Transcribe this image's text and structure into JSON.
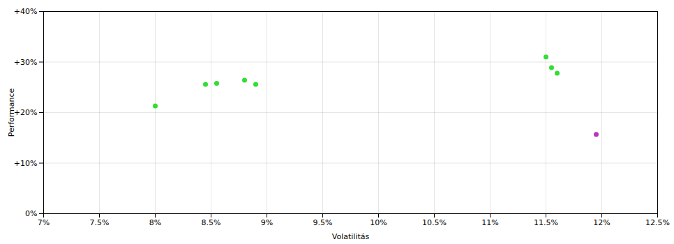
{
  "chart_data": {
    "type": "scatter",
    "xlabel": "Volatilitás",
    "ylabel": "Performance",
    "series": [
      {
        "color": "#33dd33",
        "x": [
          0.08,
          0.0845,
          0.0855,
          0.088,
          0.089,
          0.115,
          0.1155,
          0.116
        ],
        "values": [
          0.213,
          0.256,
          0.258,
          0.264,
          0.256,
          0.31,
          0.289,
          0.278
        ]
      },
      {
        "color": "#bb33bb",
        "x": [
          0.1195
        ],
        "values": [
          0.157
        ]
      }
    ],
    "xlim": [
      0.07,
      0.125
    ],
    "ylim": [
      0.0,
      0.4
    ],
    "xticks": [
      {
        "value": 0.07,
        "label": "7%"
      },
      {
        "value": 0.075,
        "label": "7.5%"
      },
      {
        "value": 0.08,
        "label": "8%"
      },
      {
        "value": 0.085,
        "label": "8.5%"
      },
      {
        "value": 0.09,
        "label": "9%"
      },
      {
        "value": 0.095,
        "label": "9.5%"
      },
      {
        "value": 0.1,
        "label": "10%"
      },
      {
        "value": 0.105,
        "label": "10.5%"
      },
      {
        "value": 0.11,
        "label": "11%"
      },
      {
        "value": 0.115,
        "label": "11.5%"
      },
      {
        "value": 0.12,
        "label": "12%"
      },
      {
        "value": 0.125,
        "label": "12.5%"
      }
    ],
    "yticks": [
      {
        "value": 0.0,
        "label": "0%"
      },
      {
        "value": 0.1,
        "label": "+10%"
      },
      {
        "value": 0.2,
        "label": "+20%"
      },
      {
        "value": 0.3,
        "label": "+30%"
      },
      {
        "value": 0.4,
        "label": "+40%"
      }
    ],
    "grid": true
  }
}
